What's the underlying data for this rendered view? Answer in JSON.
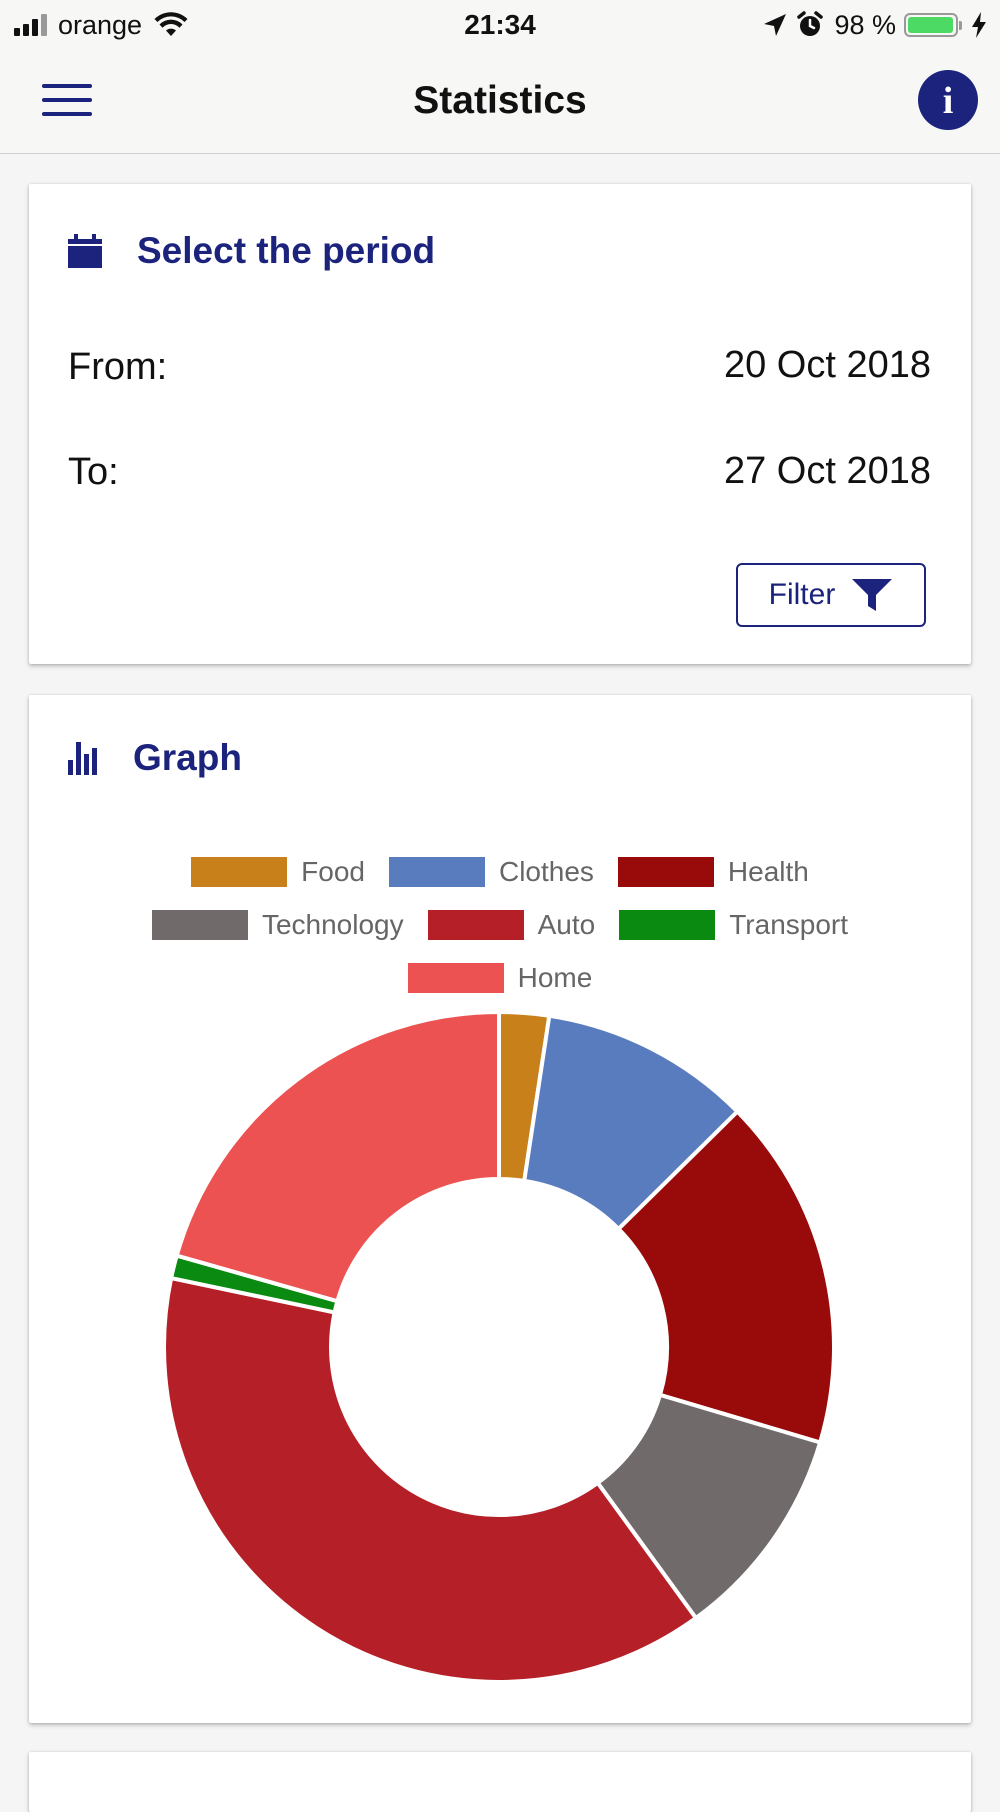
{
  "status_bar": {
    "carrier": "orange",
    "time": "21:34",
    "battery_percent": "98 %",
    "battery_level": 0.98,
    "icons": [
      "signal-icon",
      "wifi-icon",
      "location-arrow-icon",
      "alarm-icon",
      "battery-icon",
      "charging-bolt-icon"
    ]
  },
  "nav": {
    "title": "Statistics",
    "info_label": "i",
    "icons": [
      "hamburger-menu-icon",
      "info-icon"
    ]
  },
  "period_card": {
    "title": "Select the period",
    "icon": "calendar-icon",
    "from_label": "From:",
    "from_value": "20 Oct 2018",
    "to_label": "To:",
    "to_value": "27 Oct 2018",
    "filter_label": "Filter",
    "filter_icon": "funnel-icon"
  },
  "graph_card": {
    "title": "Graph",
    "icon": "bar-chart-icon"
  },
  "colors": {
    "accent": "#1b237d"
  },
  "chart_data": {
    "type": "pie",
    "variant": "doughnut",
    "legend_position": "top",
    "categories": [
      "Food",
      "Clothes",
      "Health",
      "Technology",
      "Auto",
      "Transport",
      "Home"
    ],
    "values": [
      2.4,
      10.2,
      17.0,
      10.4,
      38.3,
      1.1,
      20.6
    ],
    "colors": [
      "#c8801a",
      "#597cbf",
      "#990b0b",
      "#706b6a",
      "#b52028",
      "#0a8a10",
      "#ec5252"
    ]
  }
}
